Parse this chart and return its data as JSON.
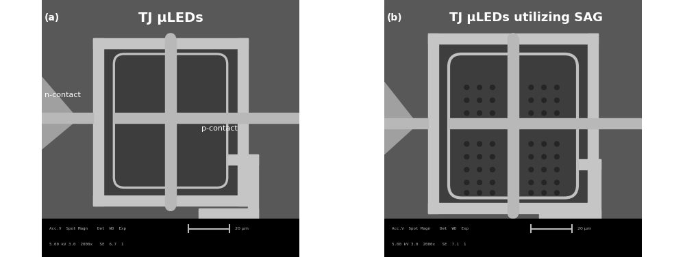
{
  "fig_width": 10.0,
  "fig_height": 3.76,
  "dpi": 100,
  "bg_color": "#ffffff",
  "sem_bg": "#606060",
  "sem_bg_dark": "#3a3a3a",
  "metal_light": "#c8c8c8",
  "metal_mid": "#b0b0b0",
  "metal_dark": "#909090",
  "black": "#000000",
  "white": "#ffffff",
  "panel_a_title": "TJ μLEDs",
  "panel_b_title": "TJ μLEDs utilizing SAG",
  "scalebar_text1_a": "Acc.V  Spot Magn    Det  WD  Exp",
  "scalebar_text2_a": "5.00 kV 3.0  2000x   SE  6.7  1",
  "scalebar_text1_b": "Acc.V  Spot Magn    Det  WD  Exp",
  "scalebar_text2_b": "5.00 kV 3.0  2000x   SE  7.1  1",
  "scalebar_scale": "20 μm"
}
